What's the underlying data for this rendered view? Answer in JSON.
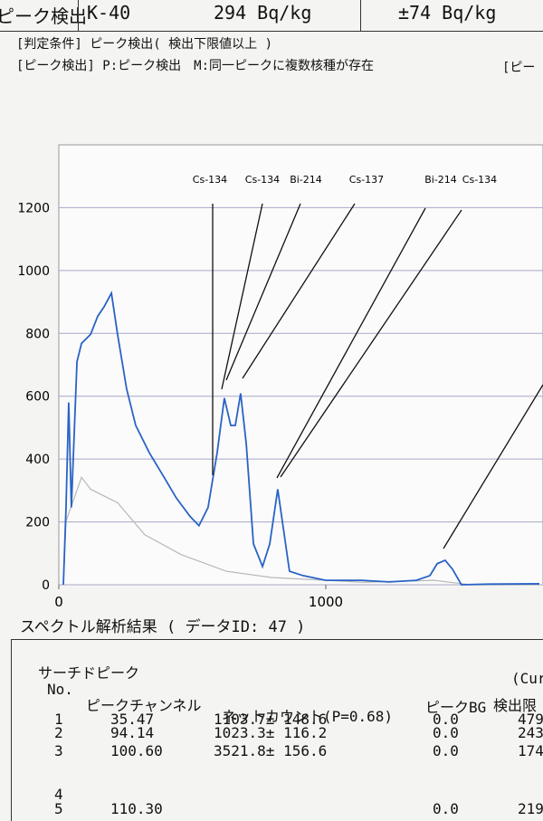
{
  "header": {
    "cells": [
      "ピーク検出",
      "K-40",
      "294 Bq/kg",
      "±74 Bq/kg"
    ]
  },
  "notes": [
    "[判定条件] ピーク検出( 検出下限値以上 )",
    "[ピーク検出] P:ピーク検出　M:同一ピークに複数核種が存在",
    "[ピー"
  ],
  "chart_data": {
    "type": "line",
    "annotations": [
      "Cs-134",
      "Cs-134",
      "Bi-214",
      "Cs-137",
      "Bi-214",
      "Cs-134"
    ],
    "xlim": [
      0,
      1800
    ],
    "xticks": [
      0,
      1000
    ],
    "ylim": [
      0,
      1400
    ],
    "yticks": [
      0,
      200,
      400,
      600,
      800,
      1000,
      1200
    ],
    "grid": true,
    "series": [
      {
        "color": "#2a63c6",
        "x": [
          17,
          27,
          37,
          47,
          68,
          85,
          119,
          146,
          169,
          197,
          220,
          254,
          288,
          339,
          390,
          441,
          492,
          525,
          559,
          593,
          620,
          644,
          661,
          681,
          702,
          729,
          763,
          790,
          820,
          837,
          864,
          915,
          1000,
          1136,
          1237,
          1339,
          1390,
          1417,
          1447,
          1475,
          1508,
          1610,
          1800
        ],
        "values": [
          0,
          246,
          580,
          246,
          710,
          768,
          797,
          855,
          884,
          928,
          797,
          623,
          507,
          420,
          348,
          275,
          217,
          188,
          246,
          420,
          594,
          507,
          507,
          609,
          449,
          130,
          58,
          130,
          304,
          203,
          43,
          29,
          14,
          14,
          9,
          14,
          29,
          67,
          78,
          49,
          0,
          2,
          3
        ]
      },
      {
        "color": "#b8b8b8",
        "x": [
          17,
          27,
          47,
          85,
          119,
          220,
          322,
          458,
          627,
          797,
          1136,
          1407,
          1542,
          1800
        ],
        "values": [
          0,
          203,
          250,
          342,
          304,
          261,
          159,
          96,
          43,
          23,
          8,
          14,
          0,
          0
        ]
      }
    ]
  },
  "results": {
    "title": "スペクトル解析結果 ( データID: 47 )",
    "section": "サーチドピーク",
    "cur": "(Cur",
    "columns": [
      "No.",
      "ピークチャンネル",
      "ネットカウント(P=0.68)",
      "ピークBG",
      "検出限"
    ],
    "rows": [
      {
        "no": "1",
        "channel": "35.47",
        "net": "1103.7± 148.6",
        "bg": "0.0",
        "limit": "479"
      },
      {
        "no": "2",
        "channel": "94.14",
        "net": "1023.3± 116.2",
        "bg": "0.0",
        "limit": "243"
      },
      {
        "no": "3",
        "channel": "100.60",
        "net": "3521.8± 156.6",
        "bg": "0.0",
        "limit": "174"
      },
      {
        "no": "4"
      },
      {
        "no": "5",
        "channel": "110.30",
        "bg": "0.0",
        "limit": "219"
      }
    ]
  }
}
